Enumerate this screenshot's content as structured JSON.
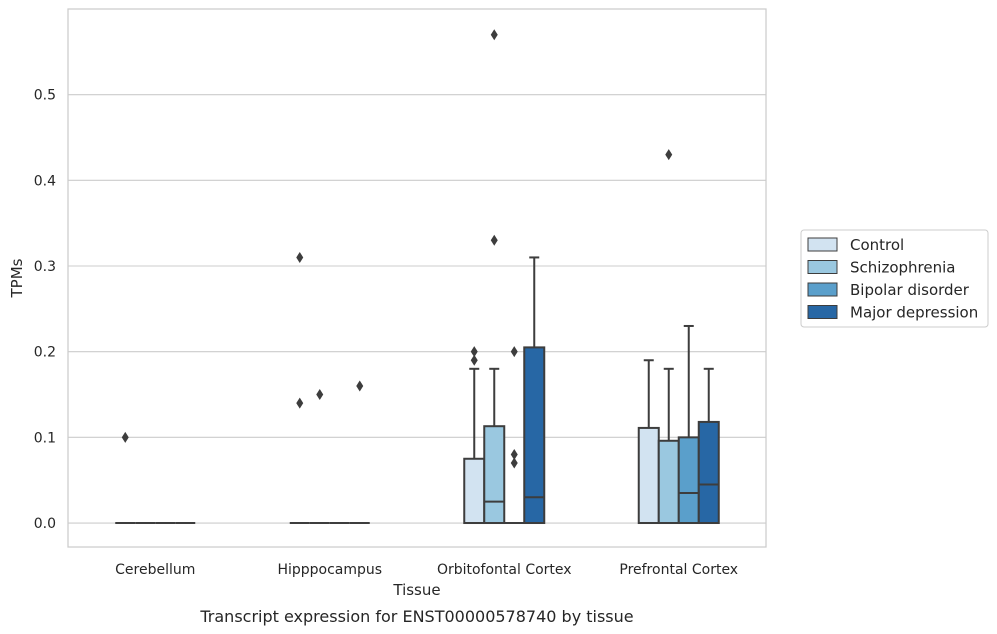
{
  "chart_data": {
    "type": "box",
    "caption": "Transcript expression for ENST00000578740 by tissue",
    "xlabel": "Tissue",
    "ylabel": "TPMs",
    "ylim": [
      -0.028,
      0.6
    ],
    "yticks": [
      "0.0",
      "0.1",
      "0.2",
      "0.3",
      "0.4",
      "0.5"
    ],
    "ytick_values": [
      0,
      0.1,
      0.2,
      0.3,
      0.4,
      0.5
    ],
    "grid": "horizontal",
    "legend_position": "right",
    "categories": [
      "Cerebellum",
      "Hipppocampus",
      "Orbitofontal Cortex",
      "Prefrontal Cortex"
    ],
    "series": [
      {
        "name": "Control",
        "color": "#d2e3f1",
        "boxes": [
          {
            "q1": 0,
            "median": 0,
            "q3": 0,
            "whislo": 0,
            "whishi": 0,
            "fliers": [
              0.1
            ]
          },
          {
            "q1": 0,
            "median": 0,
            "q3": 0,
            "whislo": 0,
            "whishi": 0,
            "fliers": [
              0.31,
              0.14
            ]
          },
          {
            "q1": 0,
            "median": 0,
            "q3": 0.075,
            "whislo": 0,
            "whishi": 0.18,
            "fliers": [
              0.2,
              0.19
            ]
          },
          {
            "q1": 0,
            "median": 0,
            "q3": 0.111,
            "whislo": 0,
            "whishi": 0.19,
            "fliers": []
          }
        ]
      },
      {
        "name": "Schizophrenia",
        "color": "#9ac8e0",
        "boxes": [
          {
            "q1": 0,
            "median": 0,
            "q3": 0,
            "whislo": 0,
            "whishi": 0,
            "fliers": []
          },
          {
            "q1": 0,
            "median": 0,
            "q3": 0,
            "whislo": 0,
            "whishi": 0,
            "fliers": [
              0.15
            ]
          },
          {
            "q1": 0,
            "median": 0.025,
            "q3": 0.113,
            "whislo": 0,
            "whishi": 0.18,
            "fliers": [
              0.57,
              0.33
            ]
          },
          {
            "q1": 0,
            "median": 0,
            "q3": 0.096,
            "whislo": 0,
            "whishi": 0.18,
            "fliers": [
              0.43
            ]
          }
        ]
      },
      {
        "name": "Bipolar disorder",
        "color": "#5a9fcb",
        "boxes": [
          {
            "q1": 0,
            "median": 0,
            "q3": 0,
            "whislo": 0,
            "whishi": 0,
            "fliers": []
          },
          {
            "q1": 0,
            "median": 0,
            "q3": 0,
            "whislo": 0,
            "whishi": 0,
            "fliers": []
          },
          {
            "q1": 0,
            "median": 0,
            "q3": 0,
            "whislo": 0,
            "whishi": 0,
            "fliers": [
              0.2,
              0.08,
              0.07
            ]
          },
          {
            "q1": 0,
            "median": 0.035,
            "q3": 0.1,
            "whislo": 0,
            "whishi": 0.23,
            "fliers": []
          }
        ]
      },
      {
        "name": "Major depression",
        "color": "#2767a5",
        "boxes": [
          {
            "q1": 0,
            "median": 0,
            "q3": 0,
            "whislo": 0,
            "whishi": 0,
            "fliers": []
          },
          {
            "q1": 0,
            "median": 0,
            "q3": 0,
            "whislo": 0,
            "whishi": 0,
            "fliers": [
              0.16
            ]
          },
          {
            "q1": 0,
            "median": 0.03,
            "q3": 0.205,
            "whislo": 0,
            "whishi": 0.31,
            "fliers": []
          },
          {
            "q1": 0,
            "median": 0.045,
            "q3": 0.118,
            "whislo": 0,
            "whishi": 0.18,
            "fliers": []
          }
        ]
      }
    ]
  }
}
